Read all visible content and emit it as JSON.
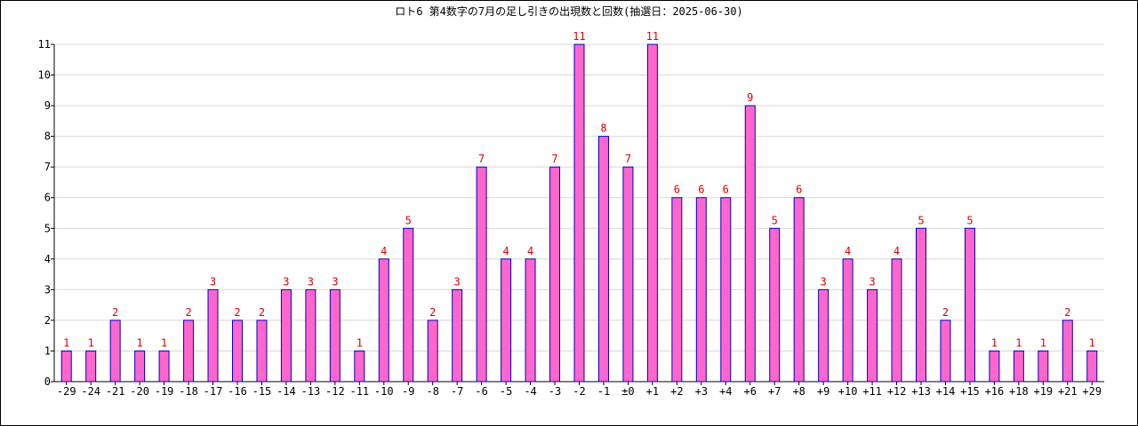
{
  "chart_data": {
    "type": "bar",
    "title": "ロト6 第4数字の7月の足し引きの出現数と回数(抽選日：2025-06-30)",
    "xlabel": "",
    "ylabel": "",
    "ylim": [
      0,
      11
    ],
    "yticks": [
      0,
      1,
      2,
      3,
      4,
      5,
      6,
      7,
      8,
      9,
      10,
      11
    ],
    "grid": true,
    "legend": "none",
    "categories": [
      "-29",
      "-24",
      "-21",
      "-20",
      "-19",
      "-18",
      "-17",
      "-16",
      "-15",
      "-14",
      "-13",
      "-12",
      "-11",
      "-10",
      "-9",
      "-8",
      "-7",
      "-6",
      "-5",
      "-4",
      "-3",
      "-2",
      "-1",
      "±0",
      "+1",
      "+2",
      "+3",
      "+4",
      "+6",
      "+7",
      "+8",
      "+9",
      "+10",
      "+11",
      "+12",
      "+13",
      "+14",
      "+15",
      "+16",
      "+18",
      "+19",
      "+21",
      "+29"
    ],
    "values": [
      1,
      1,
      2,
      1,
      1,
      2,
      3,
      2,
      2,
      3,
      3,
      3,
      1,
      4,
      5,
      2,
      3,
      7,
      4,
      4,
      7,
      11,
      8,
      7,
      11,
      6,
      6,
      6,
      9,
      5,
      6,
      3,
      4,
      3,
      4,
      5,
      2,
      5,
      1,
      1,
      1,
      2,
      1
    ],
    "colors": {
      "bar_fill": "#ff66cc",
      "bar_stroke": "#0000cc",
      "data_label": "#dd0000",
      "grid": "#d8d8d8",
      "axis": "#000000"
    }
  }
}
